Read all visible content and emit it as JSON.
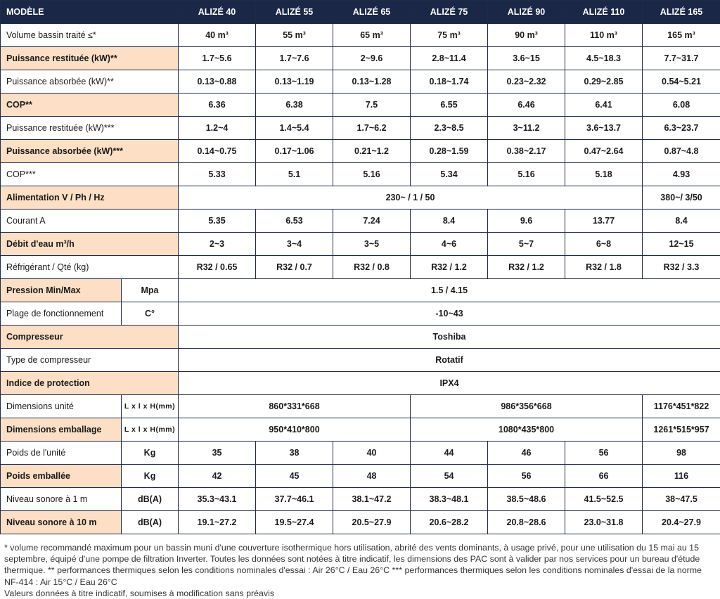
{
  "colors": {
    "header_bg": "#1b2746",
    "highlight_row": "#fcdfc4",
    "border": "#1e2a4a"
  },
  "header": {
    "model_label": "MODÈLE",
    "models": [
      "ALIZÉ 40",
      "ALIZÉ 55",
      "ALIZÉ 65",
      "ALIZÉ 75",
      "ALIZÉ 90",
      "ALIZÉ 110",
      "ALIZÉ 165"
    ]
  },
  "rows": {
    "volume": {
      "label": "Volume bassin traité ≤*",
      "values": [
        "40 m³",
        "55 m³",
        "65 m³",
        "75 m³",
        "90 m³",
        "110 m³",
        "165 m³"
      ]
    },
    "p_rest_2": {
      "label": "Puissance restituée (kW)**",
      "values": [
        "1.7~5.6",
        "1.7~7.6",
        "2~9.6",
        "2.8~11.4",
        "3.6~15",
        "4.5~18.3",
        "7.7~31.7"
      ]
    },
    "p_abs_2": {
      "label": "Puissance absorbée (kW)**",
      "values": [
        "0.13~0.88",
        "0.13~1.19",
        "0.13~1.28",
        "0.18~1.74",
        "0.23~2.32",
        "0.29~2.85",
        "0.54~5.21"
      ]
    },
    "cop_2": {
      "label": "COP**",
      "values": [
        "6.36",
        "6.38",
        "7.5",
        "6.55",
        "6.46",
        "6.41",
        "6.08"
      ]
    },
    "p_rest_3": {
      "label": "Puissance restituée (kW)***",
      "values": [
        "1.2~4",
        "1.4~5.4",
        "1.7~6.2",
        "2.3~8.5",
        "3~11.2",
        "3.6~13.7",
        "6.3~23.7"
      ]
    },
    "p_abs_3": {
      "label": "Puissance absorbée (kW)***",
      "values": [
        "0.14~0.75",
        "0.17~1.06",
        "0.21~1.2",
        "0.28~1.59",
        "0.38~2.17",
        "0.47~2.64",
        "0.87~4.8"
      ]
    },
    "cop_3": {
      "label": "COP***",
      "values": [
        "5.33",
        "5.1",
        "5.16",
        "5.34",
        "5.16",
        "5.18",
        "4.93"
      ]
    },
    "alimentation": {
      "label": "Alimentation V / Ph / Hz",
      "values": [
        "230~ / 1 / 50",
        "380~/ 3/50"
      ]
    },
    "courant": {
      "label": "Courant A",
      "values": [
        "5.35",
        "6.53",
        "7.24",
        "8.4",
        "9.6",
        "13.77",
        "8.4"
      ]
    },
    "debit": {
      "label": "Débit d'eau m³/h",
      "values": [
        "2~3",
        "3~4",
        "3~5",
        "4~6",
        "5~7",
        "6~8",
        "12~15"
      ]
    },
    "refrigerant": {
      "label": "Réfrigérant / Qté (kg)",
      "values": [
        "R32 / 0.65",
        "R32 / 0.7",
        "R32 / 0.8",
        "R32 / 1.2",
        "R32 / 1.2",
        "R32 / 1.8",
        "R32 / 3.3"
      ]
    },
    "pression": {
      "label": "Pression Min/Max",
      "unit": "Mpa",
      "value": "1.5 / 4.15"
    },
    "plage": {
      "label": "Plage de fonctionnement",
      "unit": "C°",
      "value": "-10~43"
    },
    "compresseur": {
      "label": "Compresseur",
      "value": "Toshiba"
    },
    "type_compresseur": {
      "label": "Type de compresseur",
      "value": "Rotatif"
    },
    "protection": {
      "label": "Indice de protection",
      "value": "IPX4"
    },
    "dim_unite": {
      "label": "Dimensions unité",
      "unit": "L x l x H(mm)",
      "values": [
        "860*331*668",
        "986*356*668",
        "1176*451*822"
      ]
    },
    "dim_emballage": {
      "label": "Dimensions emballage",
      "unit": "L x l x H(mm)",
      "values": [
        "950*410*800",
        "1080*435*800",
        "1261*515*957"
      ]
    },
    "poids_unite": {
      "label": "Poids de l'unité",
      "unit": "Kg",
      "values": [
        "35",
        "38",
        "40",
        "44",
        "46",
        "56",
        "98"
      ]
    },
    "poids_emballee": {
      "label": "Poids emballée",
      "unit": "Kg",
      "values": [
        "42",
        "45",
        "48",
        "54",
        "56",
        "66",
        "116"
      ]
    },
    "sonore_1m": {
      "label": "Niveau sonore à 1 m",
      "unit": "dB(A)",
      "values": [
        "35.3~43.1",
        "37.7~46.1",
        "38.1~47.2",
        "38.3~48.1",
        "38.5~48.6",
        "41.5~52.5",
        "38~47.5"
      ]
    },
    "sonore_10m": {
      "label": "Niveau sonore à 10 m",
      "unit": "dB(A)",
      "values": [
        "19.1~27.2",
        "19.5~27.4",
        "20.5~27.9",
        "20.6~28.2",
        "20.8~28.6",
        "23.0~31.8",
        "20.4~27.9"
      ]
    }
  },
  "footnotes": {
    "paragraph": "* volume recommandé maximum pour un bassin muni d'une couverture isothermique hors utilisation, abrité des vents dominants,  à usage privé, pour une utilisation du 15 mai au 15 septembre, équipé d'une pompe de filtration Inverter. Toutes les données sont notées à titre indicatif, les dimensions des PAC sont à valider par nos services pour un bureau d'étude thermique. ** performances thermiques selon les conditions nominales d'essai : Air 26°C / Eau 26°C *** performances thermiques selon les conditions nominales d'essai de la norme NF-414 : Air 15°C / Eau 26°C",
    "disclaimer": "Valeurs données à titre indicatif, soumises à modification sans préavis"
  }
}
